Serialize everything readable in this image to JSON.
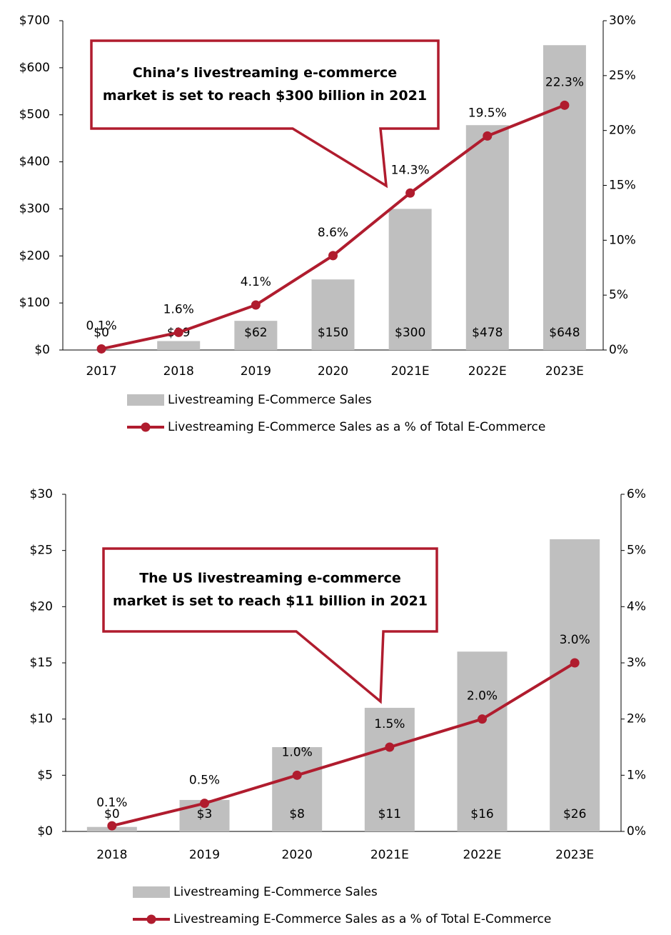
{
  "chart_data": [
    {
      "type": "bar",
      "annotation": [
        "China’s livestreaming e-commerce",
        "market is set to reach $300 billion in 2021"
      ],
      "categories": [
        "2017",
        "2018",
        "2019",
        "2020",
        "2021E",
        "2022E",
        "2023E"
      ],
      "series": [
        {
          "name": "Livestreaming E-Commerce Sales",
          "type": "bar",
          "color": "#bfbfbf",
          "values": [
            0,
            19,
            62,
            150,
            300,
            478,
            648
          ],
          "value_labels": [
            "$0",
            "$19",
            "$62",
            "$150",
            "$300",
            "$478",
            "$648"
          ]
        },
        {
          "name": "Livestreaming E-Commerce Sales as a % of Total E-Commerce",
          "type": "line",
          "axis": "y2",
          "color": "#b01c2e",
          "values": [
            0.1,
            1.6,
            4.1,
            8.6,
            14.3,
            19.5,
            22.3
          ],
          "value_labels": [
            "0.1%",
            "1.6%",
            "4.1%",
            "8.6%",
            "14.3%",
            "19.5%",
            "22.3%"
          ]
        }
      ],
      "ylim": [
        0,
        700
      ],
      "yticks": [
        {
          "value": 0,
          "label": "$0"
        },
        {
          "value": 100,
          "label": "$100"
        },
        {
          "value": 200,
          "label": "$200"
        },
        {
          "value": 300,
          "label": "$300"
        },
        {
          "value": 400,
          "label": "$400"
        },
        {
          "value": 500,
          "label": "$500"
        },
        {
          "value": 600,
          "label": "$600"
        },
        {
          "value": 700,
          "label": "$700"
        }
      ],
      "y2lim": [
        0,
        30
      ],
      "y2ticks": [
        {
          "value": 0,
          "label": "0%"
        },
        {
          "value": 5,
          "label": "5%"
        },
        {
          "value": 10,
          "label": "10%"
        },
        {
          "value": 15,
          "label": "15%"
        },
        {
          "value": 20,
          "label": "20%"
        },
        {
          "value": 25,
          "label": "25%"
        },
        {
          "value": 30,
          "label": "30%"
        }
      ],
      "legend": "bottom"
    },
    {
      "type": "bar",
      "annotation": [
        "The US livestreaming e-commerce",
        "market is set to reach $11 billion in 2021"
      ],
      "categories": [
        "2018",
        "2019",
        "2020",
        "2021E",
        "2022E",
        "2023E"
      ],
      "series": [
        {
          "name": "Livestreaming E-Commerce Sales",
          "type": "bar",
          "color": "#bfbfbf",
          "values": [
            0.4,
            2.8,
            7.5,
            11,
            16,
            26
          ],
          "value_labels": [
            "$0",
            "$3",
            "$8",
            "$11",
            "$16",
            "$26"
          ]
        },
        {
          "name": "Livestreaming E-Commerce Sales as a % of Total E-Commerce",
          "type": "line",
          "axis": "y2",
          "color": "#b01c2e",
          "values": [
            0.1,
            0.5,
            1.0,
            1.5,
            2.0,
            3.0
          ],
          "value_labels": [
            "0.1%",
            "0.5%",
            "1.0%",
            "1.5%",
            "2.0%",
            "3.0%"
          ]
        }
      ],
      "ylim": [
        0,
        30
      ],
      "yticks": [
        {
          "value": 0,
          "label": "$0"
        },
        {
          "value": 5,
          "label": "$5"
        },
        {
          "value": 10,
          "label": "$10"
        },
        {
          "value": 15,
          "label": "$15"
        },
        {
          "value": 20,
          "label": "$20"
        },
        {
          "value": 25,
          "label": "$25"
        },
        {
          "value": 30,
          "label": "$30"
        }
      ],
      "y2lim": [
        0,
        6
      ],
      "y2ticks": [
        {
          "value": 0,
          "label": "0%"
        },
        {
          "value": 1,
          "label": "1%"
        },
        {
          "value": 2,
          "label": "2%"
        },
        {
          "value": 3,
          "label": "3%"
        },
        {
          "value": 4,
          "label": "4%"
        },
        {
          "value": 5,
          "label": "5%"
        },
        {
          "value": 6,
          "label": "6%"
        }
      ],
      "legend": "bottom"
    }
  ]
}
